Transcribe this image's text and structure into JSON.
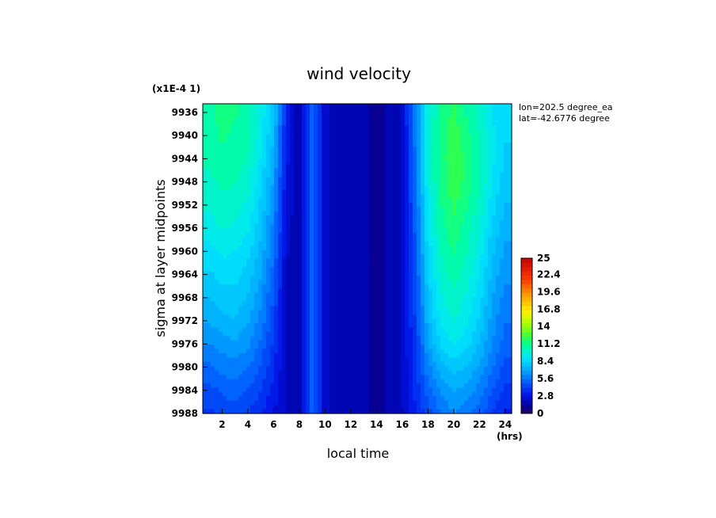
{
  "chart_data": {
    "type": "heatmap",
    "title": "wind velocity",
    "xlabel": "local time",
    "ylabel": "sigma at layer midpoints",
    "xunit": "(hrs)",
    "yscale_note": "(x1E-4 1)",
    "annotation": [
      "lon=202.5 degree_ea",
      "lat=-42.6776 degree"
    ],
    "xlim": [
      0.5,
      24.5
    ],
    "ylim": [
      9934.5,
      9988
    ],
    "x_ticks": [
      2,
      4,
      6,
      8,
      10,
      12,
      14,
      16,
      18,
      20,
      22,
      24
    ],
    "y_ticks": [
      9936,
      9940,
      9944,
      9948,
      9952,
      9956,
      9960,
      9964,
      9968,
      9972,
      9976,
      9980,
      9984,
      9988
    ],
    "colorbar": {
      "min": 0,
      "max": 25,
      "tick_labels": [
        "0",
        "2.8",
        "5.6",
        "8.4",
        "11.2",
        "14",
        "16.8",
        "19.6",
        "22.4",
        "25"
      ]
    },
    "x": [
      1,
      2,
      3,
      4,
      5,
      6,
      7,
      8,
      9,
      10,
      11,
      12,
      13,
      14,
      15,
      16,
      17,
      18,
      19,
      20,
      21,
      22,
      23,
      24
    ],
    "y": [
      9936,
      9940,
      9944,
      9948,
      9952,
      9956,
      9960,
      9964,
      9968,
      9972,
      9976,
      9980,
      9984,
      9988
    ],
    "z": [
      [
        11.0,
        11.4,
        11.2,
        10.8,
        9.5,
        8.0,
        3.5,
        1.5,
        5.5,
        2.2,
        1.8,
        2.0,
        1.6,
        1.2,
        1.5,
        2.2,
        6.0,
        9.5,
        11.2,
        12.0,
        11.0,
        10.0,
        9.0,
        8.5
      ],
      [
        10.8,
        11.2,
        11.0,
        10.6,
        9.3,
        7.6,
        3.2,
        1.5,
        5.5,
        2.2,
        1.8,
        2.0,
        1.6,
        1.2,
        1.5,
        2.2,
        5.8,
        9.8,
        11.4,
        12.2,
        11.4,
        10.4,
        9.2,
        8.4
      ],
      [
        10.6,
        11.0,
        10.8,
        10.4,
        9.0,
        7.2,
        3.0,
        1.5,
        5.5,
        2.2,
        1.8,
        2.0,
        1.6,
        1.2,
        1.5,
        2.2,
        5.6,
        9.8,
        11.4,
        12.4,
        11.6,
        10.6,
        9.2,
        8.2
      ],
      [
        10.2,
        10.6,
        10.5,
        10.0,
        8.6,
        6.8,
        2.8,
        1.5,
        5.5,
        2.2,
        1.8,
        2.0,
        1.6,
        1.2,
        1.5,
        2.2,
        5.4,
        9.6,
        11.2,
        12.2,
        11.6,
        10.6,
        9.0,
        8.0
      ],
      [
        9.8,
        10.2,
        10.0,
        9.6,
        8.2,
        6.4,
        2.6,
        1.5,
        5.5,
        2.2,
        1.8,
        2.0,
        1.6,
        1.2,
        1.5,
        2.2,
        5.2,
        9.2,
        11.0,
        12.0,
        11.2,
        10.2,
        8.6,
        7.6
      ],
      [
        9.4,
        9.8,
        9.6,
        9.2,
        7.8,
        6.0,
        2.4,
        1.5,
        5.5,
        2.2,
        1.8,
        2.0,
        1.6,
        1.2,
        1.5,
        2.2,
        5.0,
        9.0,
        10.8,
        11.6,
        10.8,
        9.8,
        8.2,
        7.2
      ],
      [
        8.8,
        9.2,
        9.0,
        8.6,
        7.4,
        5.6,
        2.2,
        1.5,
        5.5,
        2.2,
        1.8,
        2.0,
        1.6,
        1.2,
        1.5,
        2.2,
        4.8,
        8.6,
        10.4,
        11.2,
        10.4,
        9.4,
        7.8,
        6.8
      ],
      [
        8.2,
        8.6,
        8.6,
        8.0,
        7.0,
        5.2,
        2.0,
        1.5,
        5.5,
        2.2,
        1.8,
        2.0,
        1.6,
        1.2,
        1.5,
        2.2,
        4.6,
        8.2,
        10.0,
        10.8,
        10.0,
        9.0,
        7.4,
        6.4
      ],
      [
        7.6,
        8.0,
        8.0,
        7.6,
        6.4,
        4.8,
        2.0,
        1.5,
        5.5,
        2.2,
        1.8,
        2.0,
        1.6,
        1.2,
        1.5,
        2.2,
        4.4,
        7.8,
        9.6,
        10.2,
        9.6,
        8.6,
        7.0,
        6.0
      ],
      [
        7.0,
        7.4,
        7.6,
        7.0,
        6.0,
        4.4,
        2.0,
        1.5,
        5.5,
        2.2,
        1.8,
        2.0,
        1.6,
        1.2,
        1.5,
        2.2,
        4.2,
        7.4,
        9.2,
        9.8,
        9.2,
        8.2,
        6.6,
        5.6
      ],
      [
        6.2,
        6.6,
        6.8,
        6.4,
        5.4,
        4.0,
        2.0,
        1.5,
        5.5,
        2.2,
        1.8,
        2.0,
        1.6,
        1.2,
        1.5,
        2.2,
        4.0,
        6.8,
        8.4,
        9.0,
        8.6,
        7.6,
        6.2,
        5.2
      ],
      [
        5.4,
        5.8,
        6.0,
        5.6,
        4.8,
        3.6,
        2.0,
        1.5,
        5.5,
        2.2,
        1.8,
        2.0,
        1.6,
        1.2,
        1.5,
        2.2,
        3.8,
        6.0,
        7.4,
        8.0,
        7.6,
        6.8,
        5.6,
        4.6
      ],
      [
        4.6,
        5.0,
        5.2,
        4.8,
        4.2,
        3.2,
        2.0,
        1.5,
        5.5,
        2.2,
        1.8,
        2.0,
        1.6,
        1.2,
        1.5,
        2.2,
        3.6,
        5.2,
        6.4,
        7.0,
        6.6,
        6.0,
        4.8,
        4.0
      ],
      [
        4.0,
        4.4,
        4.6,
        4.2,
        3.6,
        2.8,
        2.0,
        1.5,
        5.5,
        2.2,
        1.8,
        2.0,
        1.6,
        1.2,
        1.5,
        2.2,
        3.4,
        4.6,
        5.6,
        6.2,
        5.8,
        5.2,
        4.2,
        3.4
      ]
    ]
  }
}
